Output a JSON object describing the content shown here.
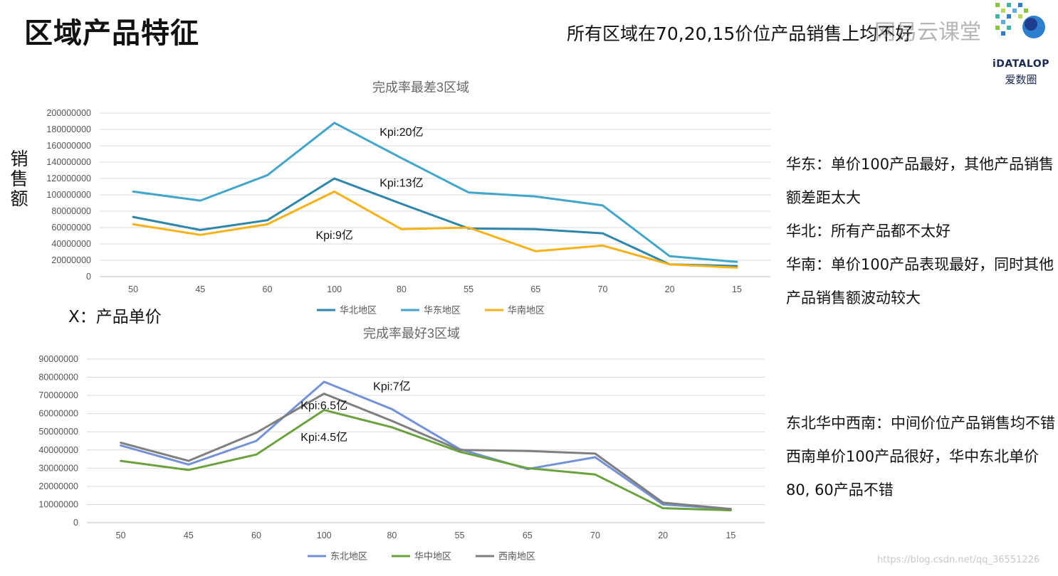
{
  "page": {
    "title": "区域产品特征",
    "headline": "所有区域在70,20,15价位产品销售上均不好",
    "watermark": "网易云课堂",
    "y_axis_caption": "销售额",
    "x_axis_caption": "X：产品单价",
    "logo_text": "iDATALOP",
    "logo_subtext": "爱数圈",
    "credit": "https://blog.csdn.net/qq_36551226",
    "notes_top": [
      "华东：单价100产品最好，其他产品销售额差距太大",
      "华北：所有产品都不太好",
      "华南：单价100产品表现最好，同时其他产品销售额波动较大"
    ],
    "notes_bottom": [
      "东北华中西南：中间价位产品销售均不错",
      "西南单价100产品很好，华中东北单价80, 60产品不错"
    ]
  },
  "chart_data": [
    {
      "type": "line",
      "title": "完成率最差3区域",
      "categories": [
        "50",
        "45",
        "60",
        "100",
        "80",
        "55",
        "65",
        "70",
        "20",
        "15"
      ],
      "ylim": [
        0,
        200000000
      ],
      "yticks": [
        0,
        20000000,
        40000000,
        60000000,
        80000000,
        100000000,
        120000000,
        140000000,
        160000000,
        180000000,
        200000000
      ],
      "grid": true,
      "legend": "bottom",
      "series": [
        {
          "name": "华北地区",
          "color": "#2e86ab",
          "values": [
            73000000,
            57000000,
            69000000,
            120000000,
            89000000,
            59000000,
            58000000,
            53000000,
            15000000,
            13000000
          ]
        },
        {
          "name": "华东地区",
          "color": "#41a6c9",
          "values": [
            104000000,
            93000000,
            124000000,
            188000000,
            145000000,
            103000000,
            98000000,
            87000000,
            25000000,
            18000000
          ]
        },
        {
          "name": "华南地区",
          "color": "#f7b217",
          "values": [
            64000000,
            51000000,
            64000000,
            104000000,
            58000000,
            60000000,
            31000000,
            38000000,
            15000000,
            11000000
          ]
        }
      ],
      "annotations": [
        {
          "text": "Kpi:20亿",
          "category": "80",
          "y": 172000000
        },
        {
          "text": "Kpi:13亿",
          "category": "80",
          "y": 110000000
        },
        {
          "text": "Kpi:9亿",
          "category": "100",
          "y": 46000000
        }
      ]
    },
    {
      "type": "line",
      "title": "完成率最好3区域",
      "categories": [
        "50",
        "45",
        "60",
        "100",
        "80",
        "55",
        "65",
        "70",
        "20",
        "15"
      ],
      "ylim": [
        0,
        90000000
      ],
      "yticks": [
        0,
        10000000,
        20000000,
        30000000,
        40000000,
        50000000,
        60000000,
        70000000,
        80000000,
        90000000
      ],
      "grid": true,
      "legend": "bottom",
      "series": [
        {
          "name": "东北地区",
          "color": "#7492d8",
          "values": [
            42500000,
            32000000,
            45000000,
            77500000,
            62500000,
            40500000,
            29500000,
            36000000,
            10000000,
            7500000
          ]
        },
        {
          "name": "华中地区",
          "color": "#6aa23e",
          "values": [
            34000000,
            29000000,
            37500000,
            62000000,
            52500000,
            39000000,
            30000000,
            26500000,
            8000000,
            6800000
          ]
        },
        {
          "name": "西南地区",
          "color": "#7f7f7f",
          "values": [
            44000000,
            34000000,
            49500000,
            71000000,
            56000000,
            40000000,
            39500000,
            38000000,
            11000000,
            7500000
          ]
        }
      ],
      "annotations": [
        {
          "text": "Kpi:7亿",
          "category": "80",
          "y": 73000000
        },
        {
          "text": "Kpi:6.5亿",
          "category": "100",
          "y": 62500000
        },
        {
          "text": "Kpi:4.5亿",
          "category": "100",
          "y": 45000000
        }
      ]
    }
  ]
}
